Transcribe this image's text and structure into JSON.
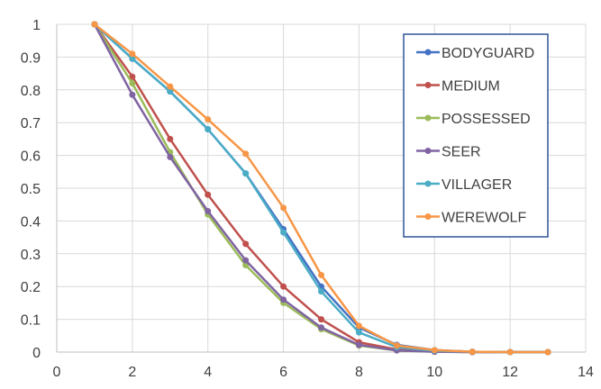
{
  "chart_data": {
    "type": "line",
    "title": "",
    "xlabel": "",
    "ylabel": "",
    "xlim": [
      0,
      14
    ],
    "ylim": [
      0,
      1
    ],
    "xticks": [
      0,
      2,
      4,
      6,
      8,
      10,
      12,
      14
    ],
    "yticks": [
      0,
      0.1,
      0.2,
      0.3,
      0.4,
      0.5,
      0.6,
      0.7,
      0.8,
      0.9,
      1
    ],
    "xtick_labels": [
      "0",
      "2",
      "4",
      "6",
      "8",
      "10",
      "12",
      "14"
    ],
    "ytick_labels": [
      "0",
      "0.1",
      "0.2",
      "0.3",
      "0.4",
      "0.5",
      "0.6",
      "0.7",
      "0.8",
      "0.9",
      "1"
    ],
    "grid": true,
    "legend_position": "top-right",
    "x": [
      1,
      2,
      3,
      4,
      5,
      6,
      7,
      8,
      9,
      10,
      11,
      12,
      13
    ],
    "series": [
      {
        "name": "BODYGUARD",
        "color": "#4472C4",
        "values": [
          1,
          0.895,
          0.795,
          0.68,
          0.545,
          0.375,
          0.2,
          0.075,
          0.022,
          0.006,
          0.001,
          0,
          0
        ]
      },
      {
        "name": "MEDIUM",
        "color": "#C0504D",
        "values": [
          1,
          0.84,
          0.65,
          0.48,
          0.33,
          0.2,
          0.1,
          0.03,
          0.008,
          0.002,
          0,
          0,
          0
        ]
      },
      {
        "name": "POSSESSED",
        "color": "#9BBB59",
        "values": [
          1,
          0.82,
          0.61,
          0.42,
          0.265,
          0.15,
          0.07,
          0.02,
          0.005,
          0.001,
          0,
          0,
          0
        ]
      },
      {
        "name": "SEER",
        "color": "#8064A2",
        "values": [
          1,
          0.785,
          0.595,
          0.43,
          0.28,
          0.16,
          0.075,
          0.022,
          0.005,
          0.001,
          0,
          0,
          0
        ]
      },
      {
        "name": "VILLAGER",
        "color": "#4BACC6",
        "values": [
          1,
          0.895,
          0.795,
          0.68,
          0.545,
          0.365,
          0.185,
          0.06,
          0.015,
          0.004,
          0.001,
          0,
          0
        ]
      },
      {
        "name": "WEREWOLF",
        "color": "#F79646",
        "values": [
          1,
          0.91,
          0.81,
          0.71,
          0.605,
          0.44,
          0.235,
          0.08,
          0.02,
          0.006,
          0.001,
          0,
          0
        ]
      }
    ],
    "style": {
      "gridline_color": "#D9D9D9",
      "axis_color": "#BFBFBF",
      "legend_border_color": "#2F5597"
    }
  }
}
